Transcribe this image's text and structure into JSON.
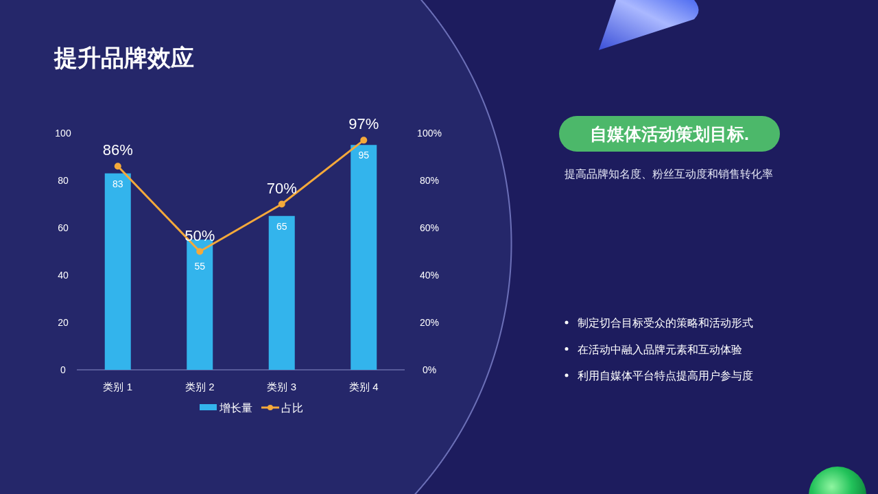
{
  "chart_data": [
    {
      "type": "bar",
      "title": "提升品牌效应",
      "categories": [
        "类别 1",
        "类别 2",
        "类别 3",
        "类别 4"
      ],
      "series": [
        {
          "type": "bar",
          "name": "增长量",
          "color": "#33b4ec",
          "values": [
            83,
            55,
            65,
            95
          ],
          "value_labels": [
            "83",
            "55",
            "65",
            "95"
          ]
        },
        {
          "type": "line",
          "name": "占比",
          "color": "#f5a93a",
          "axis": "y2",
          "marker": "circle",
          "values": [
            86,
            50,
            70,
            97
          ],
          "value_labels": [
            "86%",
            "50%",
            "70%",
            "97%"
          ]
        }
      ],
      "ylim": [
        0,
        100
      ],
      "yticks": [
        0,
        20,
        40,
        60,
        80,
        100
      ],
      "y2lim": [
        0,
        100
      ],
      "y2ticks": [
        {
          "value": 0,
          "label": "0%"
        },
        {
          "value": 20,
          "label": "20%"
        },
        {
          "value": 40,
          "label": "40%"
        },
        {
          "value": 60,
          "label": "60%"
        },
        {
          "value": 80,
          "label": "80%"
        },
        {
          "value": 100,
          "label": "100%"
        }
      ],
      "legend": "bottom"
    },
    {
      "type": "other",
      "title": "自媒体活动策划目标.",
      "subtitle": "提高品牌知名度、粉丝互动度和销售转化率",
      "annotations": [
        "制定切合目标受众的策略和活动形式",
        "在活动中融入品牌元素和互动体验",
        "利用自媒体平台特点提高用户参与度"
      ]
    }
  ]
}
